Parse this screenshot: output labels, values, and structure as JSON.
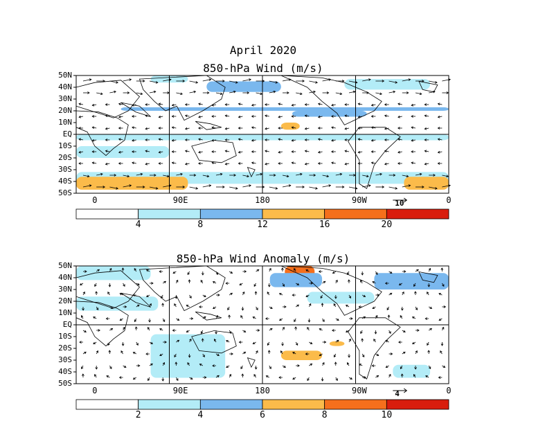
{
  "header": {
    "period": "April 2020"
  },
  "panels": [
    {
      "title": "850-hPa Wind (m/s)",
      "lat_labels": [
        "50N",
        "40N",
        "30N",
        "20N",
        "10N",
        "EQ",
        "10S",
        "20S",
        "30S",
        "40S",
        "50S"
      ],
      "lon_labels": [
        "0",
        "90E",
        "180",
        "90W",
        "0"
      ],
      "ref_vector": "10",
      "colorbar": {
        "labels": [
          "4",
          "8",
          "12",
          "16",
          "20"
        ],
        "colors": [
          "#ffffff",
          "#b3ecf7",
          "#7ab8ee",
          "#fbbb4a",
          "#f56f1c",
          "#d91d0d"
        ]
      }
    },
    {
      "title": "850-hPa Wind Anomaly (m/s)",
      "lat_labels": [
        "50N",
        "40N",
        "30N",
        "20N",
        "10N",
        "EQ",
        "10S",
        "20S",
        "30S",
        "40S",
        "50S"
      ],
      "lon_labels": [
        "0",
        "90E",
        "180",
        "90W",
        "0"
      ],
      "ref_vector": "4",
      "colorbar": {
        "labels": [
          "2",
          "4",
          "6",
          "8",
          "10"
        ],
        "colors": [
          "#ffffff",
          "#b3ecf7",
          "#7ab8ee",
          "#fbbb4a",
          "#f56f1c",
          "#d91d0d"
        ]
      }
    }
  ]
}
